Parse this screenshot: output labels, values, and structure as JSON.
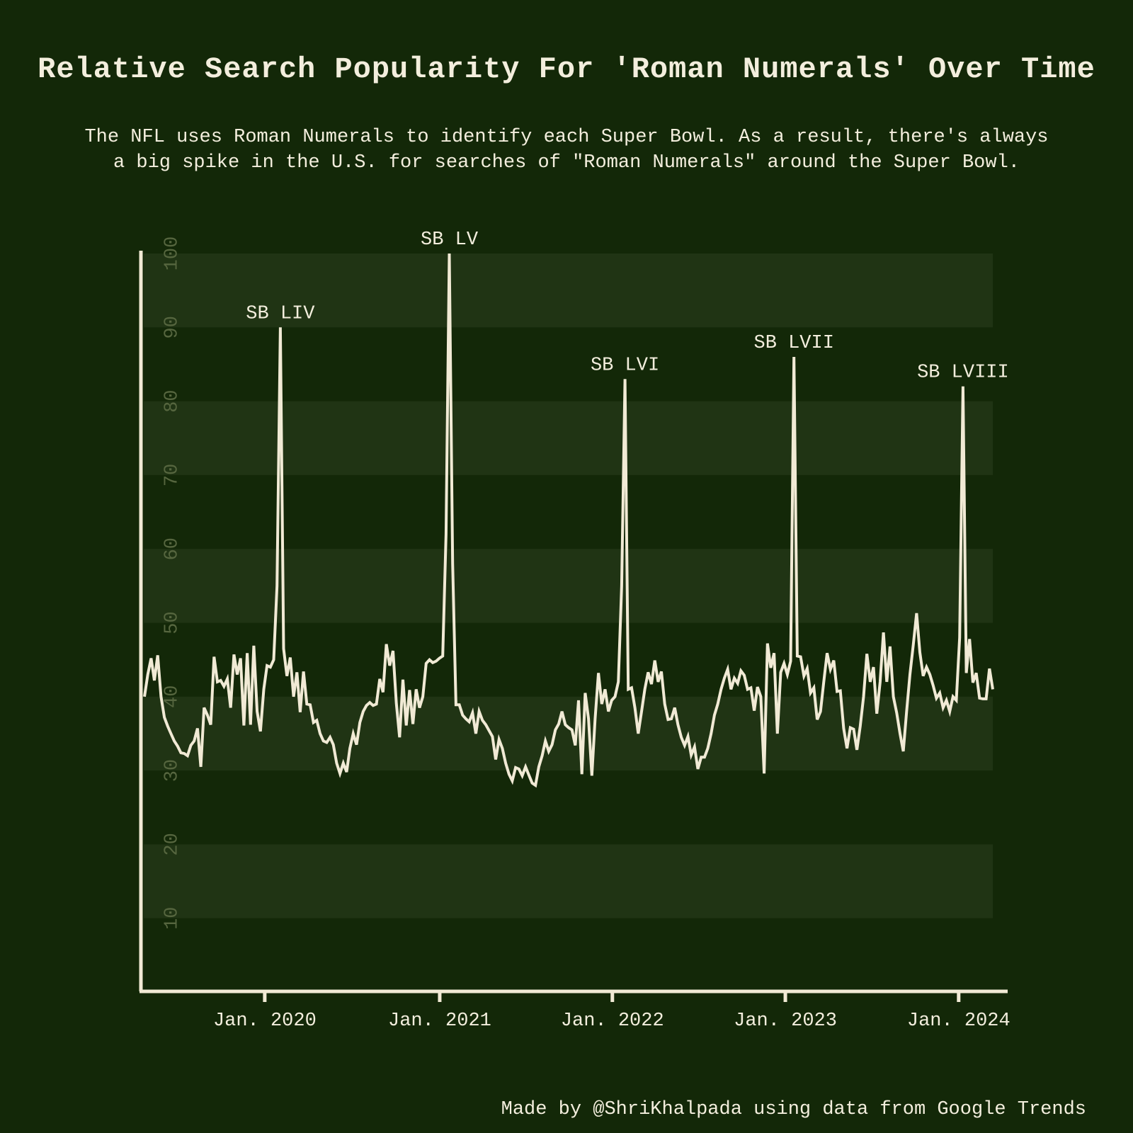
{
  "header": {
    "title": "Relative Search Popularity For 'Roman Numerals' Over Time",
    "subtitle_line1": "The NFL uses Roman Numerals to identify each Super Bowl. As a result, there's always",
    "subtitle_line2": "a big spike in the U.S. for searches of \"Roman Numerals\" around the Super Bowl."
  },
  "footer": {
    "credit": "Made by @ShriKhalpada using data from Google Trends"
  },
  "colors": {
    "background": "#132808",
    "stripe": "#203414",
    "line": "#f1ead5",
    "text": "#f3eedd",
    "muted_tick": "#56663f"
  },
  "chart_data": {
    "type": "line",
    "title": "Relative Search Popularity For 'Roman Numerals' Over Time",
    "xlabel": "",
    "ylabel": "",
    "ylim": [
      0,
      100
    ],
    "grid": "striped-bands",
    "legend_position": "none",
    "stripe_bands": [
      [
        10,
        20
      ],
      [
        30,
        40
      ],
      [
        50,
        60
      ],
      [
        70,
        80
      ],
      [
        90,
        100
      ]
    ],
    "y_ticks": [
      10,
      20,
      30,
      40,
      50,
      60,
      70,
      80,
      90,
      100
    ],
    "y_tick_orientation": "rotated-90-ccw",
    "x_ticks": [
      {
        "label": "Jan. 2020",
        "week": 36.3
      },
      {
        "label": "Jan. 2021",
        "week": 89.1
      },
      {
        "label": "Jan. 2022",
        "week": 141.2
      },
      {
        "label": "Jan. 2023",
        "week": 193.4
      },
      {
        "label": "Jan. 2024",
        "week": 245.7
      }
    ],
    "annotations": [
      {
        "label": "SB LIV",
        "week": 41,
        "value": 90
      },
      {
        "label": "SB LV",
        "week": 92,
        "value": 100
      },
      {
        "label": "SB LVI",
        "week": 145,
        "value": 83
      },
      {
        "label": "SB LVII",
        "week": 196,
        "value": 86
      },
      {
        "label": "SB LVIII",
        "week": 247,
        "value": 82
      }
    ],
    "series": [
      {
        "name": "relative_search_popularity_weekly",
        "values": [
          40,
          43,
          45.2,
          42.2,
          45.6,
          40,
          37.2,
          36,
          35,
          34,
          33.3,
          32.4,
          32.3,
          32,
          33.4,
          34,
          35.7,
          30.5,
          38.5,
          37.5,
          36.2,
          45.4,
          42,
          42.2,
          41.4,
          42.4,
          38.5,
          45.7,
          43,
          45.2,
          36.1,
          45.9,
          36.2,
          46.9,
          38,
          35.3,
          41,
          44.2,
          44,
          45,
          55,
          90,
          46.5,
          42.8,
          45.3,
          40,
          43.3,
          37.9,
          43.4,
          39,
          38.9,
          36.5,
          36.8,
          35,
          34,
          33.8,
          34.5,
          33.5,
          31,
          29.6,
          31,
          29.8,
          33,
          35,
          33.5,
          36.5,
          38,
          38.8,
          39.2,
          38.8,
          39,
          42.4,
          40.6,
          47.1,
          44.2,
          46.2,
          39.1,
          34.5,
          42.3,
          36.1,
          40.9,
          36.3,
          41,
          38.5,
          40,
          44.5,
          45,
          44.6,
          44.8,
          45.2,
          45.5,
          62,
          100,
          58,
          38.9,
          38.9,
          37.5,
          37,
          36.6,
          37.8,
          35,
          38,
          36.8,
          36.2,
          35.4,
          34.6,
          31.5,
          34.2,
          33,
          31,
          29.5,
          28.6,
          30.4,
          30.2,
          29.3,
          30.5,
          29.4,
          28.3,
          28,
          30.5,
          32,
          34,
          32.6,
          33.5,
          35.5,
          36.3,
          38,
          36.2,
          35.8,
          35.5,
          33.4,
          39.5,
          29.5,
          40.5,
          37,
          29.3,
          37,
          43.2,
          39,
          41,
          38,
          39.5,
          40,
          42,
          55,
          83,
          41,
          41.2,
          38.5,
          35,
          38,
          41,
          43.3,
          41.7,
          44.9,
          42,
          43.4,
          39,
          36.9,
          37,
          38.5,
          36.2,
          34.5,
          33.4,
          34.6,
          32.1,
          33.2,
          30.2,
          31.8,
          31.8,
          33,
          35,
          37.5,
          39,
          41,
          42.5,
          43.7,
          41,
          42.5,
          41.8,
          43.5,
          42.9,
          41,
          41.2,
          38.1,
          41.3,
          40,
          29.6,
          47.2,
          43.9,
          45.9,
          35,
          43.3,
          44.5,
          43,
          44.8,
          86,
          45.5,
          45.4,
          42.8,
          43.8,
          40.5,
          41.2,
          36.9,
          38,
          42,
          45.9,
          43.7,
          44.9,
          40.7,
          40.8,
          35.7,
          33,
          35.8,
          35.6,
          32.8,
          36,
          40,
          45.8,
          42,
          44,
          37.7,
          42,
          48.7,
          42,
          46.8,
          40,
          37.8,
          35,
          32.6,
          38,
          43,
          47,
          51.3,
          46,
          42.8,
          44,
          43,
          41.5,
          39.8,
          40.5,
          38.5,
          39.5,
          38,
          40,
          39.5,
          48,
          82,
          43.2,
          47.8,
          41.9,
          43.2,
          39.8,
          39.7,
          39.7,
          43.8,
          41
        ]
      }
    ]
  }
}
